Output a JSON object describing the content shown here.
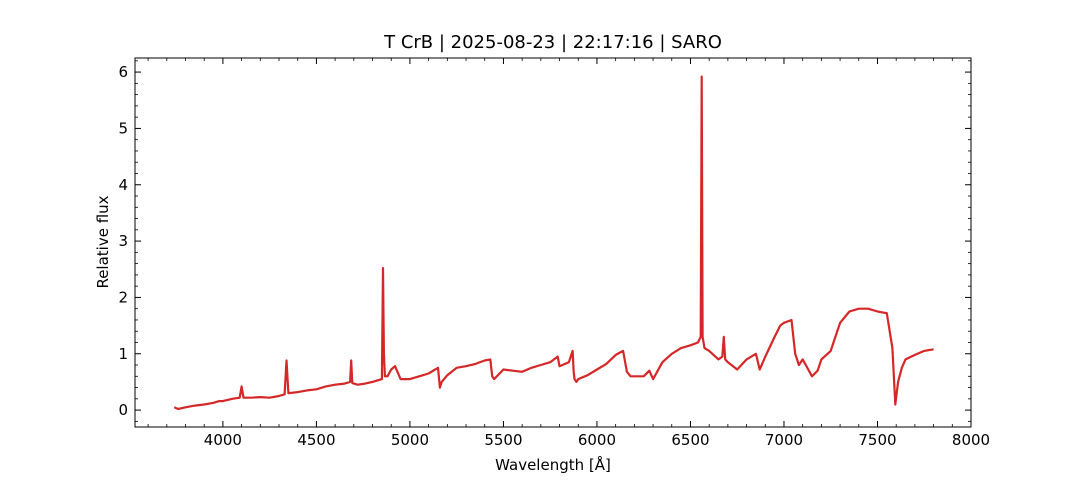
{
  "chart_data": {
    "type": "line",
    "title": "T CrB | 2025-08-23 | 22:17:16 | SARO",
    "xlabel": "Wavelength [Å]",
    "ylabel": "Relative flux",
    "xlim": [
      3530,
      8000
    ],
    "ylim": [
      -0.3,
      6.25
    ],
    "xticks": [
      4000,
      4500,
      5000,
      5500,
      6000,
      6500,
      7000,
      7500,
      8000
    ],
    "yticks": [
      0,
      1,
      2,
      3,
      4,
      5,
      6
    ],
    "grid": false,
    "legend": "none",
    "line_color": "#d62728",
    "series": [
      {
        "x": [
          3740,
          3760,
          3800,
          3850,
          3900,
          3950,
          3980,
          4000,
          4050,
          4090,
          4100,
          4110,
          4150,
          4200,
          4250,
          4300,
          4330,
          4340,
          4350,
          4400,
          4450,
          4500,
          4550,
          4600,
          4650,
          4680,
          4686,
          4692,
          4720,
          4760,
          4800,
          4850,
          4856,
          4861,
          4866,
          4880,
          4900,
          4920,
          4950,
          5000,
          5050,
          5100,
          5150,
          5160,
          5170,
          5200,
          5250,
          5300,
          5350,
          5400,
          5430,
          5440,
          5450,
          5500,
          5550,
          5600,
          5650,
          5700,
          5750,
          5790,
          5800,
          5850,
          5870,
          5875,
          5880,
          5890,
          5900,
          5950,
          6000,
          6050,
          6100,
          6140,
          6160,
          6180,
          6250,
          6280,
          6300,
          6350,
          6400,
          6450,
          6500,
          6540,
          6555,
          6560,
          6565,
          6575,
          6600,
          6650,
          6670,
          6678,
          6686,
          6700,
          6750,
          6800,
          6850,
          6870,
          6900,
          6950,
          6980,
          7000,
          7040,
          7060,
          7080,
          7100,
          7150,
          7180,
          7200,
          7250,
          7300,
          7350,
          7400,
          7450,
          7500,
          7550,
          7580,
          7595,
          7610,
          7630,
          7650,
          7700,
          7750,
          7800
        ],
        "y": [
          0.05,
          0.02,
          0.05,
          0.08,
          0.1,
          0.13,
          0.16,
          0.16,
          0.2,
          0.22,
          0.42,
          0.22,
          0.22,
          0.23,
          0.22,
          0.25,
          0.28,
          0.88,
          0.3,
          0.32,
          0.35,
          0.37,
          0.42,
          0.45,
          0.47,
          0.5,
          0.88,
          0.48,
          0.45,
          0.47,
          0.5,
          0.55,
          2.52,
          1.0,
          0.6,
          0.6,
          0.72,
          0.78,
          0.55,
          0.55,
          0.6,
          0.65,
          0.75,
          0.4,
          0.5,
          0.62,
          0.75,
          0.78,
          0.82,
          0.88,
          0.9,
          0.6,
          0.55,
          0.72,
          0.7,
          0.68,
          0.75,
          0.8,
          0.85,
          0.95,
          0.78,
          0.85,
          1.05,
          0.7,
          0.55,
          0.5,
          0.55,
          0.62,
          0.72,
          0.82,
          0.98,
          1.05,
          0.68,
          0.6,
          0.6,
          0.7,
          0.55,
          0.85,
          1.0,
          1.1,
          1.15,
          1.2,
          1.3,
          5.92,
          1.3,
          1.1,
          1.05,
          0.9,
          0.95,
          1.3,
          0.9,
          0.85,
          0.72,
          0.9,
          1.0,
          0.72,
          0.95,
          1.3,
          1.5,
          1.55,
          1.6,
          1.0,
          0.8,
          0.9,
          0.6,
          0.7,
          0.9,
          1.05,
          1.55,
          1.75,
          1.8,
          1.8,
          1.75,
          1.72,
          1.1,
          0.1,
          0.5,
          0.75,
          0.9,
          0.98,
          1.05,
          1.08
        ]
      }
    ]
  }
}
